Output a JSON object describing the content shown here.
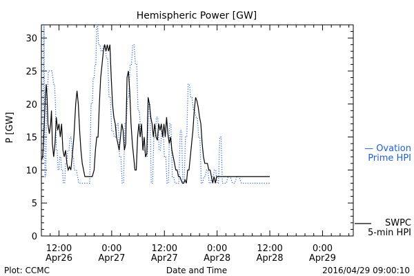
{
  "chart_data": {
    "type": "line",
    "title": "Hemispheric Power [GW]",
    "ylabel": "P [GW]",
    "xlabel": "Date and Time",
    "ylim": [
      0,
      32
    ],
    "xlim_hours_labels": "2016-04-26 08:00 to 2016-04-29 06:00",
    "grid": false,
    "yticks": [
      0,
      5,
      10,
      15,
      20,
      25,
      30
    ],
    "xticks": [
      {
        "time": "12:00",
        "date": "Apr26",
        "hour": 12
      },
      {
        "time": "0:00",
        "date": "Apr27",
        "hour": 24
      },
      {
        "time": "12:00",
        "date": "Apr27",
        "hour": 36
      },
      {
        "time": "0:00",
        "date": "Apr28",
        "hour": 48
      },
      {
        "time": "12:00",
        "date": "Apr28",
        "hour": 60
      },
      {
        "time": "0:00",
        "date": "Apr29",
        "hour": 72
      }
    ],
    "series": [
      {
        "name": "SWPC 5-min HPI",
        "style": "solid",
        "color": "#000000",
        "points": [
          [
            8.0,
            11.5
          ],
          [
            8.3,
            12
          ],
          [
            8.6,
            16
          ],
          [
            8.9,
            21
          ],
          [
            9.1,
            23
          ],
          [
            9.3,
            21
          ],
          [
            9.5,
            17
          ],
          [
            9.8,
            15.5
          ],
          [
            10.1,
            17
          ],
          [
            10.3,
            19
          ],
          [
            10.5,
            14
          ],
          [
            10.8,
            12
          ],
          [
            11.1,
            14
          ],
          [
            11.4,
            18
          ],
          [
            11.7,
            16
          ],
          [
            12.0,
            17
          ],
          [
            12.3,
            15
          ],
          [
            12.6,
            17
          ],
          [
            12.9,
            13
          ],
          [
            13.2,
            12
          ],
          [
            13.5,
            13
          ],
          [
            13.8,
            11
          ],
          [
            14.1,
            10
          ],
          [
            14.4,
            10.5
          ],
          [
            14.7,
            10
          ],
          [
            15.0,
            12
          ],
          [
            15.4,
            15
          ],
          [
            15.8,
            20
          ],
          [
            16.1,
            22
          ],
          [
            16.4,
            20
          ],
          [
            16.7,
            16
          ],
          [
            17.0,
            13
          ],
          [
            17.3,
            11
          ],
          [
            17.6,
            10
          ],
          [
            17.9,
            9
          ],
          [
            18.2,
            9
          ],
          [
            18.5,
            9
          ],
          [
            19.0,
            9
          ],
          [
            19.6,
            9
          ],
          [
            20.0,
            10
          ],
          [
            20.3,
            13
          ],
          [
            20.6,
            15
          ],
          [
            20.9,
            15
          ],
          [
            21.2,
            20
          ],
          [
            21.5,
            24
          ],
          [
            21.8,
            26
          ],
          [
            22.1,
            28
          ],
          [
            22.4,
            29
          ],
          [
            22.7,
            28
          ],
          [
            23.0,
            29
          ],
          [
            23.3,
            28
          ],
          [
            23.6,
            29
          ],
          [
            23.9,
            24
          ],
          [
            24.2,
            20
          ],
          [
            24.5,
            18
          ],
          [
            24.8,
            17
          ],
          [
            25.1,
            15
          ],
          [
            25.4,
            14
          ],
          [
            25.7,
            13
          ],
          [
            26.0,
            15
          ],
          [
            26.3,
            17
          ],
          [
            26.6,
            16
          ],
          [
            26.9,
            13
          ],
          [
            27.2,
            14
          ],
          [
            27.5,
            24
          ],
          [
            27.8,
            25
          ],
          [
            28.1,
            22
          ],
          [
            28.4,
            17
          ],
          [
            28.7,
            14
          ],
          [
            29.0,
            12
          ],
          [
            29.3,
            10
          ],
          [
            29.6,
            10
          ],
          [
            29.9,
            15
          ],
          [
            30.2,
            17
          ],
          [
            30.5,
            15
          ],
          [
            30.8,
            17
          ],
          [
            31.1,
            13
          ],
          [
            31.4,
            15
          ],
          [
            31.7,
            12
          ],
          [
            32.0,
            12.5
          ],
          [
            32.3,
            21
          ],
          [
            32.6,
            20
          ],
          [
            32.9,
            18
          ],
          [
            33.2,
            17
          ],
          [
            33.5,
            15
          ],
          [
            33.8,
            17
          ],
          [
            34.1,
            15
          ],
          [
            34.4,
            14.5
          ],
          [
            34.7,
            17
          ],
          [
            35.0,
            16
          ],
          [
            35.3,
            17
          ],
          [
            35.6,
            15
          ],
          [
            35.9,
            17
          ],
          [
            36.2,
            15
          ],
          [
            36.5,
            18
          ],
          [
            36.8,
            15.5
          ],
          [
            37.1,
            14
          ],
          [
            37.4,
            15
          ],
          [
            37.7,
            13
          ],
          [
            38.0,
            12
          ],
          [
            38.3,
            11
          ],
          [
            38.6,
            10
          ],
          [
            38.9,
            10
          ],
          [
            39.2,
            9
          ],
          [
            39.5,
            9
          ],
          [
            39.8,
            8.5
          ],
          [
            40.1,
            8
          ],
          [
            40.4,
            8
          ],
          [
            40.7,
            8.5
          ],
          [
            41.0,
            8
          ],
          [
            41.3,
            10
          ],
          [
            41.6,
            10
          ],
          [
            41.9,
            12
          ],
          [
            42.2,
            14
          ],
          [
            42.5,
            16
          ],
          [
            42.8,
            19
          ],
          [
            43.1,
            21
          ],
          [
            43.4,
            20.5
          ],
          [
            43.7,
            19.5
          ],
          [
            44.0,
            18
          ],
          [
            44.3,
            17
          ],
          [
            44.6,
            14
          ],
          [
            44.9,
            12
          ],
          [
            45.2,
            11
          ],
          [
            45.5,
            11
          ],
          [
            45.8,
            11
          ],
          [
            46.1,
            10
          ],
          [
            46.4,
            10
          ],
          [
            46.7,
            9
          ],
          [
            47.0,
            8
          ],
          [
            47.3,
            9
          ],
          [
            47.6,
            8
          ],
          [
            47.9,
            9
          ],
          [
            48.2,
            9
          ],
          [
            48.5,
            9
          ],
          [
            48.8,
            9
          ],
          [
            49.1,
            9
          ],
          [
            49.4,
            9
          ],
          [
            49.8,
            9
          ],
          [
            50.5,
            9
          ],
          [
            51.5,
            9
          ],
          [
            53.0,
            9
          ],
          [
            55.0,
            9
          ],
          [
            57.0,
            9
          ],
          [
            59.0,
            9
          ],
          [
            60.0,
            9
          ]
        ]
      },
      {
        "name": "Ovation Prime HPI",
        "style": "dotted",
        "color": "#1f5fd6",
        "points": [
          [
            8.0,
            11.5
          ],
          [
            8.4,
            11.5
          ],
          [
            8.6,
            32
          ],
          [
            8.8,
            9
          ],
          [
            9.0,
            9
          ],
          [
            9.2,
            22
          ],
          [
            9.4,
            22
          ],
          [
            9.6,
            25
          ],
          [
            10.0,
            25
          ],
          [
            10.4,
            25
          ],
          [
            10.8,
            23
          ],
          [
            11.0,
            23
          ],
          [
            11.2,
            20
          ],
          [
            11.4,
            13
          ],
          [
            11.6,
            13
          ],
          [
            11.8,
            10
          ],
          [
            12.0,
            10
          ],
          [
            12.2,
            12
          ],
          [
            12.4,
            12
          ],
          [
            12.6,
            10
          ],
          [
            12.8,
            10
          ],
          [
            13.0,
            8
          ],
          [
            13.3,
            8
          ],
          [
            13.5,
            11
          ],
          [
            13.8,
            11
          ],
          [
            14.0,
            13
          ],
          [
            14.3,
            13
          ],
          [
            14.5,
            15
          ],
          [
            14.8,
            15
          ],
          [
            15.0,
            12
          ],
          [
            15.3,
            12
          ],
          [
            15.5,
            10
          ],
          [
            15.8,
            10
          ],
          [
            16.0,
            10
          ],
          [
            16.5,
            8
          ],
          [
            17.0,
            8
          ],
          [
            17.5,
            8
          ],
          [
            18.0,
            8
          ],
          [
            18.5,
            8
          ],
          [
            19.0,
            8
          ],
          [
            19.3,
            20
          ],
          [
            19.6,
            20
          ],
          [
            19.8,
            24
          ],
          [
            20.0,
            24
          ],
          [
            20.2,
            26
          ],
          [
            20.4,
            26
          ],
          [
            20.6,
            32
          ],
          [
            20.8,
            32
          ],
          [
            21.0,
            29
          ],
          [
            21.3,
            29
          ],
          [
            21.6,
            28
          ],
          [
            21.9,
            28
          ],
          [
            22.2,
            29
          ],
          [
            22.5,
            29
          ],
          [
            22.8,
            27
          ],
          [
            23.1,
            27
          ],
          [
            23.4,
            21
          ],
          [
            23.7,
            21
          ],
          [
            24.0,
            16
          ],
          [
            24.3,
            16
          ],
          [
            24.6,
            15
          ],
          [
            24.9,
            15
          ],
          [
            25.2,
            17
          ],
          [
            25.5,
            17
          ],
          [
            25.8,
            12
          ],
          [
            26.1,
            12
          ],
          [
            26.4,
            8
          ],
          [
            26.7,
            8
          ],
          [
            27.0,
            17
          ],
          [
            27.3,
            17
          ],
          [
            27.6,
            21
          ],
          [
            27.9,
            21
          ],
          [
            28.2,
            26
          ],
          [
            28.5,
            26
          ],
          [
            28.8,
            29
          ],
          [
            29.1,
            29
          ],
          [
            29.4,
            26
          ],
          [
            29.7,
            26
          ],
          [
            30.0,
            19
          ],
          [
            30.3,
            19
          ],
          [
            30.6,
            16
          ],
          [
            30.9,
            16
          ],
          [
            31.2,
            13
          ],
          [
            31.5,
            13
          ],
          [
            31.8,
            12
          ],
          [
            32.1,
            12
          ],
          [
            32.4,
            20
          ],
          [
            32.7,
            20
          ],
          [
            33.0,
            8
          ],
          [
            33.3,
            8
          ],
          [
            33.6,
            15
          ],
          [
            33.9,
            15
          ],
          [
            34.2,
            18
          ],
          [
            34.5,
            18
          ],
          [
            34.8,
            13
          ],
          [
            35.1,
            13
          ],
          [
            35.4,
            16
          ],
          [
            35.7,
            16
          ],
          [
            36.0,
            12
          ],
          [
            36.3,
            12
          ],
          [
            36.6,
            8
          ],
          [
            36.9,
            8
          ],
          [
            37.2,
            17
          ],
          [
            37.5,
            17
          ],
          [
            37.8,
            9
          ],
          [
            38.1,
            9
          ],
          [
            38.4,
            8
          ],
          [
            38.7,
            8
          ],
          [
            39.0,
            8
          ],
          [
            39.3,
            8
          ],
          [
            39.6,
            16
          ],
          [
            39.9,
            16
          ],
          [
            40.2,
            8
          ],
          [
            40.5,
            8
          ],
          [
            40.8,
            15
          ],
          [
            41.1,
            15
          ],
          [
            41.4,
            23
          ],
          [
            41.7,
            23
          ],
          [
            42.0,
            21
          ],
          [
            42.3,
            21
          ],
          [
            42.6,
            19
          ],
          [
            42.9,
            19
          ],
          [
            43.2,
            18
          ],
          [
            43.5,
            18
          ],
          [
            43.8,
            15
          ],
          [
            44.1,
            15
          ],
          [
            44.4,
            8
          ],
          [
            44.7,
            8
          ],
          [
            45.0,
            9
          ],
          [
            45.3,
            9
          ],
          [
            45.6,
            10
          ],
          [
            45.9,
            10
          ],
          [
            46.2,
            8
          ],
          [
            46.5,
            8
          ],
          [
            46.8,
            9
          ],
          [
            47.1,
            9
          ],
          [
            47.4,
            10
          ],
          [
            47.7,
            10
          ],
          [
            48.0,
            8
          ],
          [
            48.3,
            8
          ],
          [
            48.6,
            15
          ],
          [
            48.9,
            15
          ],
          [
            49.2,
            8
          ],
          [
            49.5,
            8
          ],
          [
            49.8,
            8
          ],
          [
            50.1,
            8
          ],
          [
            50.5,
            9
          ],
          [
            51.0,
            9
          ],
          [
            51.5,
            8
          ],
          [
            52.0,
            8
          ],
          [
            52.5,
            9
          ],
          [
            53.0,
            9
          ],
          [
            53.5,
            8
          ],
          [
            54.5,
            8
          ],
          [
            55.5,
            8
          ],
          [
            56.5,
            8
          ],
          [
            58.0,
            8
          ],
          [
            59.5,
            8
          ],
          [
            60.0,
            8
          ]
        ]
      }
    ],
    "legend": [
      {
        "lines": [
          "— Ovation",
          "Prime HPI"
        ],
        "color": "#1f5fd6",
        "placement": "right-middle"
      },
      {
        "lines": [
          "SWPC",
          "5-min HPI"
        ],
        "color": "#000000",
        "placement": "right-bottom"
      }
    ]
  },
  "footer": {
    "left": "Plot: CCMC",
    "right": "2016/04/29 09:00:10"
  }
}
